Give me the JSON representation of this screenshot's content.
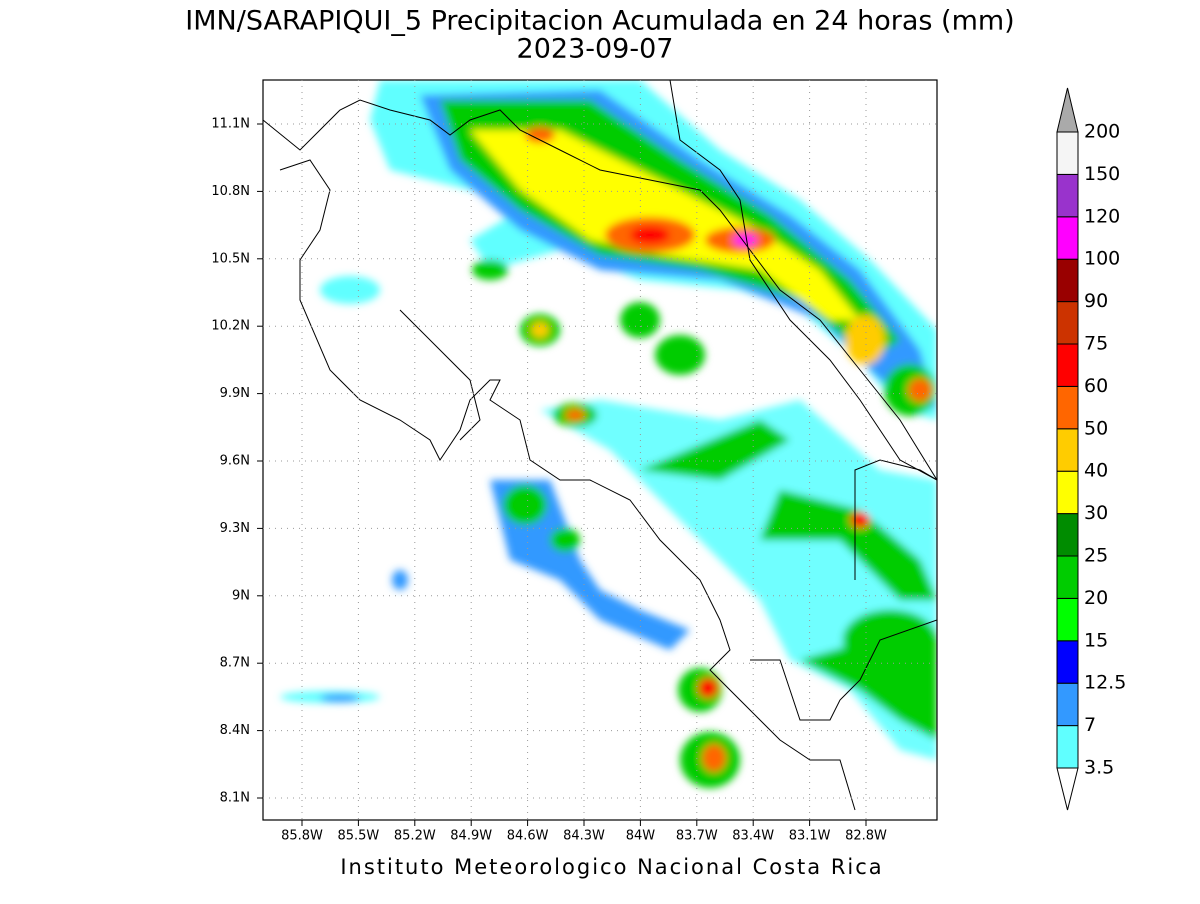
{
  "header": {
    "title": "IMN/SARAPIQUI_5 Precipitacion Acumulada en 24 horas (mm)",
    "date": "2023-09-07"
  },
  "map": {
    "xticks": [
      "85.8W",
      "85.5W",
      "85.2W",
      "84.9W",
      "84.6W",
      "84.3W",
      "84W",
      "83.7W",
      "83.4W",
      "83.1W",
      "82.8W"
    ],
    "yticks": [
      "11.1N",
      "10.8N",
      "10.5N",
      "10.2N",
      "9.9N",
      "9.6N",
      "9.3N",
      "9N",
      "8.7N",
      "8.4N",
      "8.1N"
    ]
  },
  "colorbar": {
    "levels": [
      3.5,
      7,
      12.5,
      15,
      20,
      25,
      30,
      40,
      50,
      60,
      75,
      90,
      100,
      120,
      150,
      200
    ],
    "colors": [
      "#ffffff",
      "#60ffff",
      "#3399ff",
      "#0000ff",
      "#00ff00",
      "#00cc00",
      "#008c00",
      "#ffff00",
      "#ffcc00",
      "#ff6600",
      "#ff0000",
      "#cc3300",
      "#990000",
      "#ff00ff",
      "#9933cc",
      "#f5f5f5",
      "#aaaaaa"
    ]
  },
  "footer": "Instituto Meteorologico Nacional Costa Rica"
}
